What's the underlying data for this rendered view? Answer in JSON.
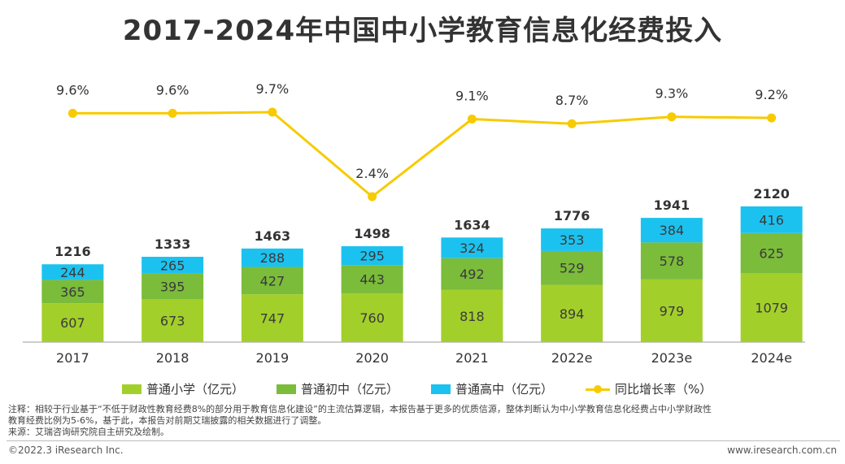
{
  "title": "2017-2024年中国中小学教育信息化经费投入",
  "chart_data": {
    "type": "bar",
    "stacked": true,
    "categories": [
      "2017",
      "2018",
      "2019",
      "2020",
      "2021",
      "2022e",
      "2023e",
      "2024e"
    ],
    "series": [
      {
        "name": "普通小学（亿元）",
        "color": "#a3cf2b",
        "values": [
          607,
          673,
          747,
          760,
          818,
          894,
          979,
          1079
        ]
      },
      {
        "name": "普通初中（亿元）",
        "color": "#7bbc3a",
        "values": [
          365,
          395,
          427,
          443,
          492,
          529,
          578,
          625
        ]
      },
      {
        "name": "普通高中（亿元）",
        "color": "#1cc2ef",
        "values": [
          244,
          265,
          288,
          295,
          324,
          353,
          384,
          416
        ]
      }
    ],
    "totals": [
      1216,
      1333,
      1463,
      1498,
      1634,
      1776,
      1941,
      2120
    ],
    "line_series": {
      "name": "同比增长率（%）",
      "color": "#f7cb00",
      "values": [
        9.6,
        9.6,
        9.7,
        2.4,
        9.1,
        8.7,
        9.3,
        9.2
      ]
    },
    "line_labels": [
      "9.6%",
      "9.6%",
      "9.7%",
      "2.4%",
      "9.1%",
      "8.7%",
      "9.3%",
      "9.2%"
    ],
    "ylim": [
      0,
      2120
    ],
    "line_ylim": [
      2.4,
      9.7
    ]
  },
  "legend": [
    {
      "label": "普通小学（亿元）",
      "color": "#a3cf2b",
      "kind": "bar"
    },
    {
      "label": "普通初中（亿元）",
      "color": "#7bbc3a",
      "kind": "bar"
    },
    {
      "label": "普通高中（亿元）",
      "color": "#1cc2ef",
      "kind": "bar"
    },
    {
      "label": "同比增长率（%）",
      "color": "#f7cb00",
      "kind": "line"
    }
  ],
  "note_line1": "注释：相较于行业基于“不低于财政性教育经费8%的部分用于教育信息化建设”的主流估算逻辑，本报告基于更多的优质信源，整体判断认为中小学教育信息化经费占中小学财政性",
  "note_line2": "教育经费比例为5-6%，基于此，本报告对前期艾瑞披露的相关数据进行了调整。",
  "source": "来源：艾瑞咨询研究院自主研究及绘制。",
  "copyright": "©2022.3 iResearch Inc.",
  "website": "www.iresearch.com.cn"
}
